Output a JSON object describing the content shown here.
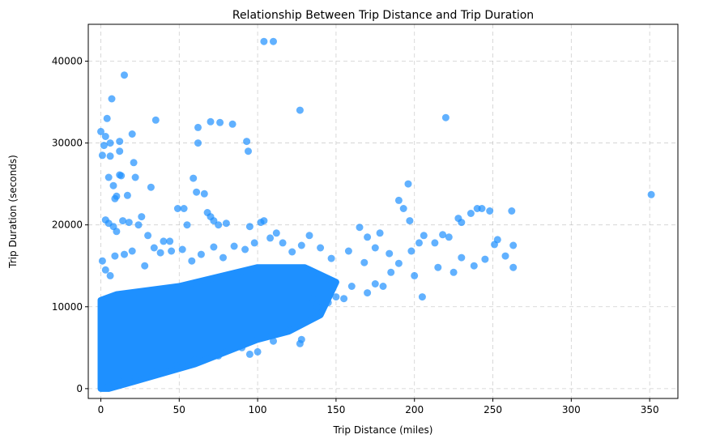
{
  "chart_data": {
    "type": "scatter",
    "title": "Relationship Between Trip Distance and Trip Duration",
    "xlabel": "Trip Distance (miles)",
    "ylabel": "Trip Duration (seconds)",
    "xlim": [
      -8,
      368
    ],
    "ylim": [
      -1200,
      44500
    ],
    "xticks": [
      0,
      50,
      100,
      150,
      200,
      250,
      300,
      350
    ],
    "yticks": [
      0,
      10000,
      20000,
      30000,
      40000
    ],
    "x_tick_labels": [
      "0",
      "50",
      "100",
      "150",
      "200",
      "250",
      "300",
      "350"
    ],
    "y_tick_labels": [
      "0",
      "10000",
      "20000",
      "30000",
      "40000"
    ],
    "grid": true,
    "marker_color": "#1E90FF",
    "marker_alpha": 0.7,
    "dense_region": {
      "description_points": [
        [
          0,
          0
        ],
        [
          0,
          10800
        ],
        [
          10,
          11500
        ],
        [
          50,
          12500
        ],
        [
          100,
          14800
        ],
        [
          130,
          14800
        ],
        [
          150,
          13000
        ],
        [
          140,
          9000
        ],
        [
          120,
          7000
        ],
        [
          100,
          6000
        ],
        [
          60,
          3000
        ],
        [
          20,
          800
        ],
        [
          5,
          0
        ]
      ]
    },
    "points": [
      [
        0,
        31400
      ],
      [
        2,
        29700
      ],
      [
        3,
        30800
      ],
      [
        4,
        33000
      ],
      [
        6,
        30000
      ],
      [
        6,
        28400
      ],
      [
        7,
        35400
      ],
      [
        12,
        30200
      ],
      [
        15,
        38300
      ],
      [
        20,
        31100
      ],
      [
        21,
        27600
      ],
      [
        12,
        29000
      ],
      [
        5,
        25800
      ],
      [
        8,
        24800
      ],
      [
        9,
        23200
      ],
      [
        10,
        23500
      ],
      [
        12,
        26100
      ],
      [
        13,
        26000
      ],
      [
        17,
        23600
      ],
      [
        22,
        25800
      ],
      [
        32,
        24600
      ],
      [
        35,
        32800
      ],
      [
        1,
        28500
      ],
      [
        62,
        31900
      ],
      [
        62,
        30000
      ],
      [
        70,
        32600
      ],
      [
        76,
        32500
      ],
      [
        84,
        32300
      ],
      [
        93,
        30200
      ],
      [
        94,
        29000
      ],
      [
        104,
        42400
      ],
      [
        110,
        42400
      ],
      [
        127,
        34000
      ],
      [
        220,
        33100
      ],
      [
        351,
        23700
      ],
      [
        3,
        20600
      ],
      [
        5,
        20200
      ],
      [
        8,
        19800
      ],
      [
        10,
        19200
      ],
      [
        14,
        20500
      ],
      [
        18,
        20300
      ],
      [
        24,
        20000
      ],
      [
        26,
        21000
      ],
      [
        30,
        18700
      ],
      [
        40,
        18000
      ],
      [
        44,
        18000
      ],
      [
        49,
        22000
      ],
      [
        53,
        22000
      ],
      [
        59,
        25700
      ],
      [
        61,
        24000
      ],
      [
        66,
        23800
      ],
      [
        68,
        21500
      ],
      [
        70,
        21000
      ],
      [
        72,
        20500
      ],
      [
        55,
        20000
      ],
      [
        75,
        20000
      ],
      [
        80,
        20200
      ],
      [
        95,
        19800
      ],
      [
        102,
        20300
      ],
      [
        104,
        20500
      ],
      [
        112,
        19000
      ],
      [
        140,
        17200
      ],
      [
        165,
        19700
      ],
      [
        170,
        18500
      ],
      [
        178,
        19000
      ],
      [
        190,
        23000
      ],
      [
        193,
        22000
      ],
      [
        196,
        25000
      ],
      [
        197,
        20500
      ],
      [
        203,
        17800
      ],
      [
        206,
        18700
      ],
      [
        213,
        17800
      ],
      [
        218,
        18800
      ],
      [
        222,
        18500
      ],
      [
        228,
        20800
      ],
      [
        230,
        20300
      ],
      [
        236,
        21400
      ],
      [
        240,
        22000
      ],
      [
        243,
        22000
      ],
      [
        248,
        21700
      ],
      [
        251,
        17600
      ],
      [
        253,
        18200
      ],
      [
        258,
        16200
      ],
      [
        263,
        17500
      ],
      [
        262,
        21700
      ],
      [
        263,
        14800
      ],
      [
        245,
        15800
      ],
      [
        238,
        15000
      ],
      [
        230,
        16000
      ],
      [
        225,
        14200
      ],
      [
        215,
        14800
      ],
      [
        205,
        11200
      ],
      [
        200,
        13800
      ],
      [
        185,
        14200
      ],
      [
        180,
        12500
      ],
      [
        175,
        12800
      ],
      [
        170,
        11700
      ],
      [
        160,
        12500
      ],
      [
        155,
        11000
      ],
      [
        150,
        11200
      ],
      [
        145,
        10500
      ],
      [
        138,
        10000
      ],
      [
        135,
        11000
      ],
      [
        128,
        6000
      ],
      [
        127,
        5500
      ],
      [
        120,
        7200
      ],
      [
        110,
        5800
      ],
      [
        100,
        4500
      ],
      [
        95,
        4200
      ],
      [
        90,
        5000
      ],
      [
        75,
        4000
      ],
      [
        60,
        3500
      ],
      [
        48,
        2800
      ],
      [
        35,
        2000
      ],
      [
        22,
        1400
      ],
      [
        12,
        900
      ],
      [
        5,
        300
      ],
      [
        1,
        15600
      ],
      [
        3,
        14500
      ],
      [
        6,
        13800
      ],
      [
        9,
        16200
      ],
      [
        15,
        16400
      ],
      [
        20,
        16800
      ],
      [
        28,
        15000
      ],
      [
        34,
        17200
      ],
      [
        38,
        16600
      ],
      [
        45,
        16800
      ],
      [
        52,
        17000
      ],
      [
        58,
        15600
      ],
      [
        64,
        16400
      ],
      [
        72,
        17300
      ],
      [
        78,
        16000
      ],
      [
        85,
        17400
      ],
      [
        92,
        17000
      ],
      [
        98,
        17800
      ],
      [
        108,
        18400
      ],
      [
        116,
        17800
      ],
      [
        122,
        16700
      ],
      [
        128,
        17500
      ],
      [
        133,
        18700
      ],
      [
        147,
        15900
      ],
      [
        158,
        16800
      ],
      [
        168,
        15400
      ],
      [
        175,
        17200
      ],
      [
        184,
        16500
      ],
      [
        190,
        15300
      ],
      [
        198,
        16800
      ]
    ]
  }
}
